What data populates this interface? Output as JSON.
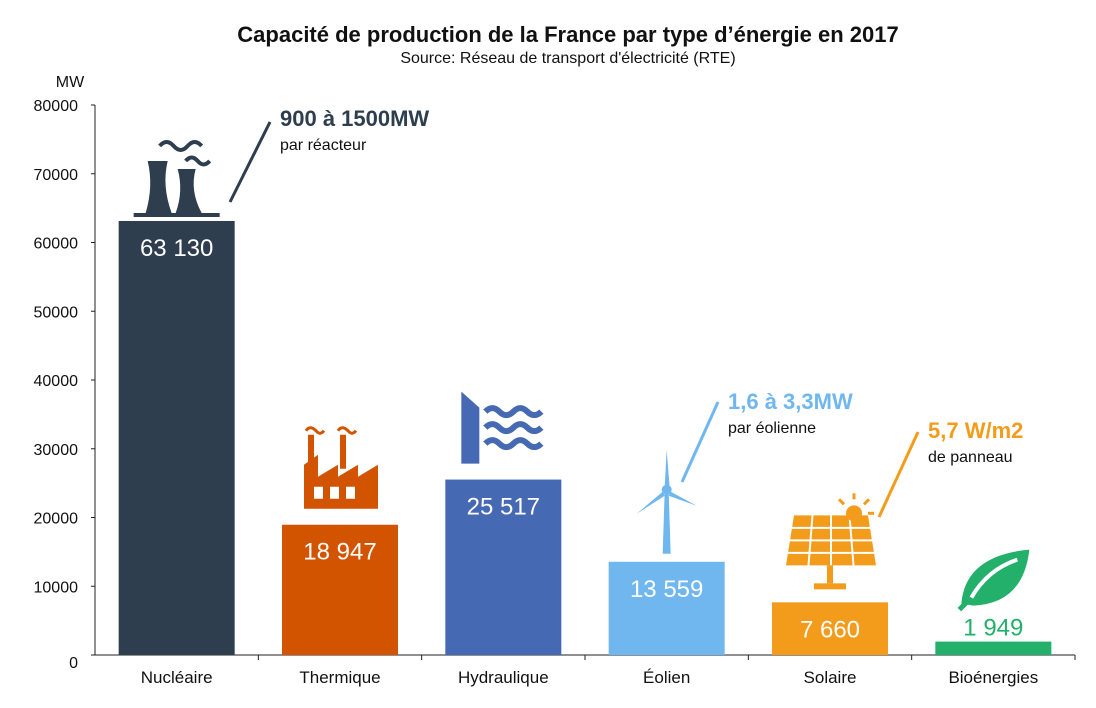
{
  "chart_data": {
    "type": "bar",
    "title": "Capacité de production de la France par type d’énergie en 2017",
    "subtitle": "Source: Réseau de transport d'électricité (RTE)",
    "ylabel": "MW",
    "xlabel": "",
    "ylim": [
      0,
      80000
    ],
    "yticks": [
      0,
      10000,
      20000,
      30000,
      40000,
      50000,
      60000,
      70000,
      80000
    ],
    "ytick_labels": [
      "0",
      "10000",
      "20000",
      "30000",
      "40000",
      "50000",
      "60000",
      "70000",
      "80000"
    ],
    "categories": [
      "Nucléaire",
      "Thermique",
      "Hydraulique",
      "Éolien",
      "Solaire",
      "Bioénergies"
    ],
    "values": [
      63130,
      18947,
      25517,
      13559,
      7660,
      1949
    ],
    "value_labels": [
      "63 130",
      "18 947",
      "25 517",
      "13 559",
      "7 660",
      "1 949"
    ],
    "colors": [
      "#2e3e4f",
      "#d35400",
      "#4569b2",
      "#6fb7ee",
      "#f39c1c",
      "#22b06b"
    ],
    "icons": [
      "nuclear-plant-icon",
      "factory-icon",
      "dam-icon",
      "wind-turbine-icon",
      "solar-panel-icon",
      "leaf-icon"
    ],
    "annotations": [
      {
        "bar": 0,
        "headline": "900 à 1500MW",
        "detail": "par réacteur",
        "color": "#2e3e4f"
      },
      {
        "bar": 3,
        "headline": "1,6 à 3,3MW",
        "detail": "par éolienne",
        "color": "#6fb7ee"
      },
      {
        "bar": 4,
        "headline": "5,7 W/m2",
        "detail": "de panneau",
        "color": "#f39c1c"
      }
    ]
  }
}
